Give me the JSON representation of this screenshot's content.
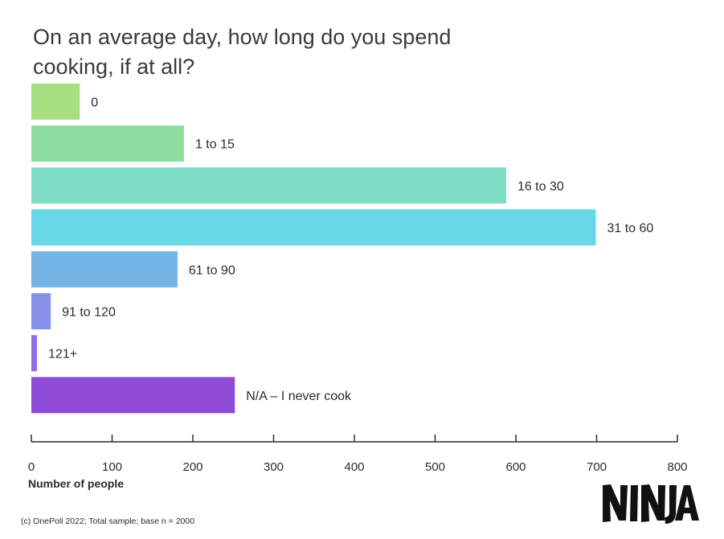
{
  "chart_data": {
    "type": "bar",
    "orientation": "horizontal",
    "title": "On an average day, how long do you spend cooking, if at all?",
    "xlabel": "Number of people",
    "ylabel": "",
    "xlim": [
      0,
      800
    ],
    "x_ticks": [
      "0",
      "100",
      "200",
      "300",
      "400",
      "500",
      "600",
      "700",
      "800"
    ],
    "categories": [
      "0",
      "1 to 15",
      "16 to 30",
      "31 to 60",
      "61 to 90",
      "91 to 120",
      "121+",
      "N/A – I never cook"
    ],
    "values": [
      60,
      189,
      588,
      699,
      181,
      24,
      7,
      252
    ],
    "colors": [
      "#a6df80",
      "#8fdca0",
      "#7fdcc6",
      "#68d8e8",
      "#74b4e6",
      "#8690e6",
      "#8f6ee2",
      "#8e4bd6"
    ],
    "grid": false
  },
  "footnote": "(c) OnePoll 2022; Total sample; base n = 2000",
  "logo_text": "NINJA"
}
